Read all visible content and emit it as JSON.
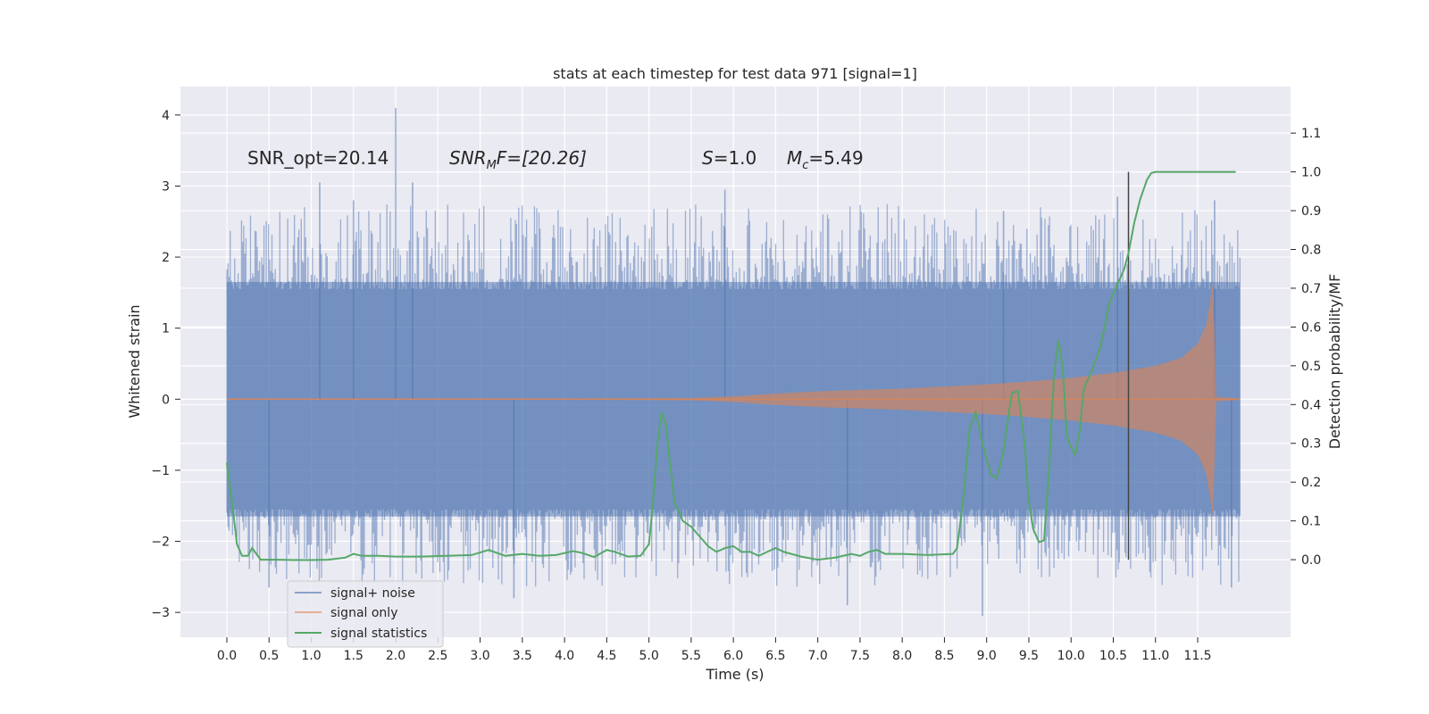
{
  "chart_data": {
    "type": "line",
    "title": "stats at each timestep for test data 971 [signal=1]",
    "xlabel": "Time (s)",
    "ylabel": "Whitened strain",
    "y2label": "Detection probability/MF",
    "xlim": [
      -0.55,
      12.6
    ],
    "ylim": [
      -3.35,
      4.4
    ],
    "y2lim": [
      -0.2,
      1.22
    ],
    "xticks": [
      0.0,
      0.5,
      1.0,
      1.5,
      2.0,
      2.5,
      3.0,
      3.5,
      4.0,
      4.5,
      5.0,
      5.5,
      6.0,
      6.5,
      7.0,
      7.5,
      8.0,
      8.5,
      9.0,
      9.5,
      10.0,
      10.5,
      11.0,
      11.5
    ],
    "xtick_labels": [
      "0.0",
      "0.5",
      "1.0",
      "1.5",
      "2.0",
      "2.5",
      "3.0",
      "3.5",
      "4.0",
      "4.5",
      "5.0",
      "5.5",
      "6.0",
      "6.5",
      "7.0",
      "7.5",
      "8.0",
      "8.5",
      "9.0",
      "9.5",
      "10.0",
      "10.5",
      "11.0",
      "11.5"
    ],
    "yticks": [
      -3,
      -2,
      -1,
      0,
      1,
      2,
      3,
      4
    ],
    "ytick_labels": [
      "−3",
      "−2",
      "−1",
      "0",
      "1",
      "2",
      "3",
      "4"
    ],
    "y2ticks": [
      0.0,
      0.1,
      0.2,
      0.3,
      0.4,
      0.5,
      0.6,
      0.7,
      0.8,
      0.9,
      1.0,
      1.1
    ],
    "y2tick_labels": [
      "0.0",
      "0.1",
      "0.2",
      "0.3",
      "0.4",
      "0.5",
      "0.6",
      "0.7",
      "0.8",
      "0.9",
      "1.0",
      "1.1"
    ],
    "annotations": [
      {
        "text": "SNR_opt=20.14",
        "x": 0.2,
        "y": 3.3
      },
      {
        "text": "SNR_M F=[20.26]",
        "x": 2.6,
        "y": 3.3
      },
      {
        "text": "S=1.0",
        "x": 5.6,
        "y": 3.3
      },
      {
        "text": "M_c=5.49",
        "x": 6.6,
        "y": 3.3
      }
    ],
    "annotation_parts": {
      "snr_opt": "SNR_opt=20.14",
      "snr_mf_main": "SNR",
      "snr_mf_sub": "M",
      "snr_mf_rest": "F=[20.26]",
      "s_main": "S",
      "s_rest": "=1.0",
      "mc_main": "M",
      "mc_sub": "c",
      "mc_rest": "=5.49"
    },
    "vline": {
      "x": 10.68,
      "y2_range": [
        0.0,
        1.0
      ]
    },
    "series": [
      {
        "name": "signal+ noise",
        "color": "#4c72b0",
        "axis": "left",
        "kind": "noise band",
        "x_range": [
          0.0,
          12.0
        ],
        "core_amplitude": 1.65,
        "peaks": [
          {
            "x": 2.0,
            "y": 4.1
          },
          {
            "x": 1.1,
            "y": 3.05
          },
          {
            "x": 2.2,
            "y": 3.05
          },
          {
            "x": 1.5,
            "y": 2.8
          },
          {
            "x": 5.9,
            "y": 2.95
          },
          {
            "x": 10.55,
            "y": 2.85
          },
          {
            "x": 11.7,
            "y": 2.8
          },
          {
            "x": 9.2,
            "y": 2.65
          }
        ],
        "troughs": [
          {
            "x": 8.95,
            "y": -3.05
          },
          {
            "x": 3.4,
            "y": -2.8
          },
          {
            "x": 7.35,
            "y": -2.9
          },
          {
            "x": 11.9,
            "y": -2.65
          },
          {
            "x": 0.5,
            "y": -2.65
          }
        ]
      },
      {
        "name": "signal only",
        "color": "#dd8452",
        "axis": "left",
        "kind": "chirp envelope",
        "x": [
          0.0,
          4.0,
          5.0,
          5.5,
          6.0,
          6.5,
          7.0,
          7.5,
          8.0,
          8.5,
          9.0,
          9.5,
          10.0,
          10.5,
          11.0,
          11.3,
          11.5,
          11.6,
          11.65,
          11.68,
          11.7,
          11.72,
          12.0
        ],
        "amplitude": [
          0.01,
          0.01,
          0.012,
          0.015,
          0.04,
          0.08,
          0.11,
          0.13,
          0.15,
          0.18,
          0.21,
          0.25,
          0.3,
          0.37,
          0.47,
          0.58,
          0.78,
          1.05,
          1.4,
          1.65,
          0.9,
          0.03,
          0.01
        ]
      },
      {
        "name": "signal statistics",
        "color": "#55a868",
        "axis": "right",
        "x": [
          0.0,
          0.06,
          0.12,
          0.18,
          0.25,
          0.3,
          0.4,
          0.5,
          0.6,
          0.8,
          1.0,
          1.2,
          1.4,
          1.5,
          1.6,
          1.8,
          2.0,
          2.3,
          2.6,
          2.9,
          3.1,
          3.3,
          3.5,
          3.7,
          3.9,
          4.1,
          4.2,
          4.35,
          4.5,
          4.6,
          4.75,
          4.9,
          5.0,
          5.05,
          5.1,
          5.15,
          5.2,
          5.25,
          5.3,
          5.4,
          5.5,
          5.6,
          5.7,
          5.8,
          5.9,
          6.0,
          6.1,
          6.2,
          6.3,
          6.4,
          6.5,
          6.6,
          6.8,
          7.0,
          7.2,
          7.4,
          7.5,
          7.6,
          7.7,
          7.8,
          8.0,
          8.3,
          8.6,
          8.65,
          8.72,
          8.8,
          8.87,
          8.95,
          9.05,
          9.12,
          9.2,
          9.25,
          9.3,
          9.37,
          9.45,
          9.5,
          9.55,
          9.62,
          9.68,
          9.74,
          9.8,
          9.85,
          9.9,
          9.95,
          10.0,
          10.05,
          10.1,
          10.15,
          10.25,
          10.35,
          10.45,
          10.55,
          10.63,
          10.68,
          10.75,
          10.82,
          10.9,
          10.95,
          11.0,
          11.3,
          11.6,
          11.95
        ],
        "values": [
          0.25,
          0.15,
          0.04,
          0.01,
          0.01,
          0.03,
          0.0,
          0.0,
          0.0,
          -0.001,
          -0.001,
          0.0,
          0.005,
          0.015,
          0.01,
          0.01,
          0.008,
          0.008,
          0.01,
          0.012,
          0.025,
          0.01,
          0.015,
          0.01,
          0.012,
          0.022,
          0.018,
          0.007,
          0.025,
          0.02,
          0.008,
          0.01,
          0.04,
          0.15,
          0.3,
          0.38,
          0.35,
          0.25,
          0.15,
          0.1,
          0.085,
          0.06,
          0.035,
          0.02,
          0.03,
          0.035,
          0.02,
          0.02,
          0.01,
          0.02,
          0.03,
          0.02,
          0.008,
          0.0,
          0.005,
          0.015,
          0.01,
          0.02,
          0.025,
          0.015,
          0.015,
          0.012,
          0.015,
          0.03,
          0.15,
          0.34,
          0.38,
          0.3,
          0.22,
          0.21,
          0.28,
          0.36,
          0.43,
          0.435,
          0.3,
          0.15,
          0.08,
          0.045,
          0.05,
          0.24,
          0.48,
          0.565,
          0.5,
          0.32,
          0.29,
          0.27,
          0.33,
          0.44,
          0.49,
          0.55,
          0.66,
          0.71,
          0.75,
          0.79,
          0.87,
          0.93,
          0.98,
          0.997,
          1.0,
          1.0,
          1.0,
          1.0
        ]
      }
    ],
    "legend": {
      "placement": "lower-left",
      "entries": [
        "signal+ noise",
        "signal only",
        "signal statistics"
      ]
    },
    "grid": true
  }
}
